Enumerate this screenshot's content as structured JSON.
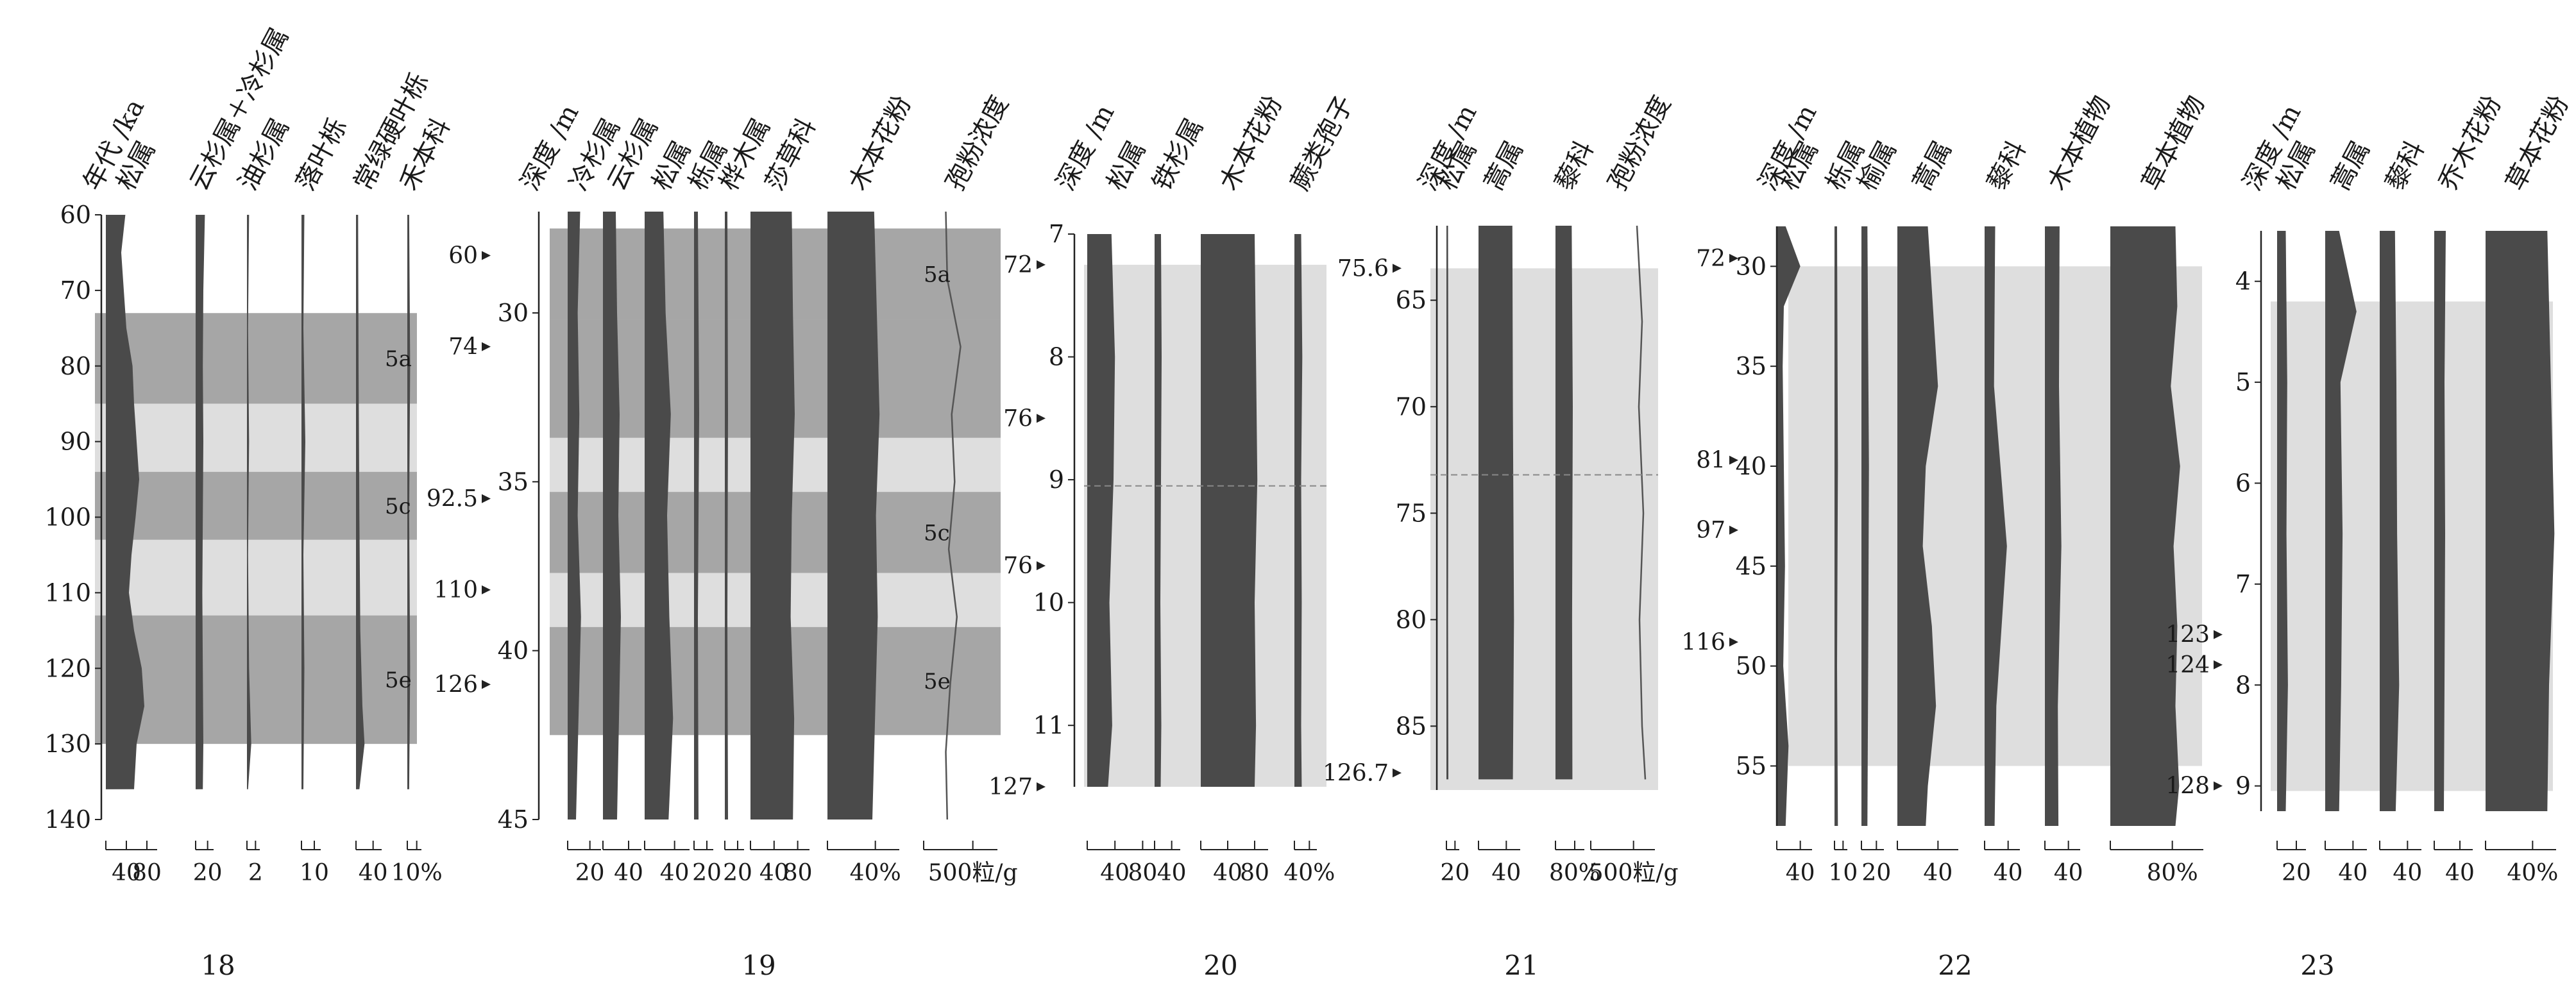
{
  "figure": {
    "colors": {
      "curve": "#4a4a4a",
      "zone_dark": "#a6a6a6",
      "zone_light": "#dedede",
      "axis": "#222222",
      "line": "#555555"
    }
  },
  "chart_data": [
    {
      "type": "area",
      "panel_label": "18",
      "depth_label": "年代 /ka",
      "depth_range": [
        60,
        140
      ],
      "depth_ticks": [
        "60",
        "70",
        "80",
        "90",
        "100",
        "110",
        "120",
        "130",
        "140"
      ],
      "zones": [
        {
          "from": 73,
          "to": 85,
          "shade": "dark",
          "label": "5a"
        },
        {
          "from": 85,
          "to": 94,
          "shade": "light",
          "label": ""
        },
        {
          "from": 94,
          "to": 103,
          "shade": "dark",
          "label": "5c"
        },
        {
          "from": 103,
          "to": 113,
          "shade": "light",
          "label": ""
        },
        {
          "from": 113,
          "to": 130,
          "shade": "dark",
          "label": "5e"
        }
      ],
      "markers": [],
      "dashed_line": null,
      "series": [
        {
          "name": "松属",
          "max": 100,
          "ticks": [
            "40",
            "80"
          ],
          "depths": [
            60,
            65,
            70,
            75,
            80,
            85,
            90,
            95,
            100,
            105,
            110,
            115,
            120,
            125,
            130,
            136
          ],
          "values": [
            38,
            30,
            35,
            40,
            52,
            55,
            60,
            65,
            58,
            50,
            45,
            55,
            70,
            75,
            60,
            55
          ]
        },
        {
          "name": "云杉属＋冷杉属",
          "max": 35,
          "ticks": [
            "20"
          ],
          "depths": [
            60,
            70,
            80,
            90,
            100,
            110,
            120,
            130,
            136
          ],
          "values": [
            18,
            15,
            14,
            15,
            14,
            13,
            14,
            15,
            14
          ]
        },
        {
          "name": "油杉属",
          "max": 6,
          "ticks": [
            "2"
          ],
          "depths": [
            60,
            75,
            90,
            105,
            120,
            130,
            136
          ],
          "values": [
            1,
            0.5,
            1,
            0.5,
            1,
            2,
            0.5
          ]
        },
        {
          "name": "落叶栎",
          "max": 20,
          "ticks": [
            "10"
          ],
          "depths": [
            60,
            75,
            90,
            105,
            120,
            136
          ],
          "values": [
            3,
            2,
            4,
            2,
            3,
            2
          ]
        },
        {
          "name": "常绿硬叶栎",
          "max": 60,
          "ticks": [
            "40"
          ],
          "depths": [
            60,
            80,
            100,
            115,
            125,
            130,
            136
          ],
          "values": [
            5,
            6,
            8,
            10,
            15,
            20,
            8
          ]
        },
        {
          "name": "禾本科",
          "max": 15,
          "ticks": [
            "10%"
          ],
          "depths": [
            60,
            80,
            100,
            120,
            136
          ],
          "values": [
            2,
            3,
            2,
            3,
            2
          ]
        }
      ]
    },
    {
      "type": "area",
      "panel_label": "19",
      "depth_label": "深度 /m",
      "depth_range": [
        27,
        45
      ],
      "depth_ticks": [
        "30",
        "35",
        "40",
        "45"
      ],
      "zones": [
        {
          "from": 27.5,
          "to": 30.2,
          "shade": "dark",
          "label": "5a"
        },
        {
          "from": 30.2,
          "to": 33.7,
          "shade": "dark",
          "label": ""
        },
        {
          "from": 33.7,
          "to": 35.3,
          "shade": "light",
          "label": ""
        },
        {
          "from": 35.3,
          "to": 37.7,
          "shade": "dark",
          "label": "5c"
        },
        {
          "from": 37.7,
          "to": 39.3,
          "shade": "light",
          "label": ""
        },
        {
          "from": 39.3,
          "to": 42.5,
          "shade": "dark",
          "label": "5e"
        }
      ],
      "markers": [
        {
          "label": "60",
          "depth": 28.3
        },
        {
          "label": "74",
          "depth": 31.0
        },
        {
          "label": "92.5",
          "depth": 35.5
        },
        {
          "label": "110",
          "depth": 38.2
        },
        {
          "label": "126",
          "depth": 41.0
        }
      ],
      "dashed_line": null,
      "series": [
        {
          "name": "冷杉属",
          "max": 40,
          "ticks": [
            "20"
          ],
          "depths": [
            27,
            30,
            33,
            36,
            39,
            42,
            45
          ],
          "values": [
            15,
            12,
            14,
            12,
            16,
            13,
            10
          ]
        },
        {
          "name": "云杉属",
          "max": 60,
          "ticks": [
            "40"
          ],
          "depths": [
            27,
            30,
            33,
            36,
            39,
            42,
            45
          ],
          "values": [
            20,
            22,
            26,
            24,
            28,
            25,
            22
          ]
        },
        {
          "name": "松属",
          "max": 60,
          "ticks": [
            "40"
          ],
          "depths": [
            27,
            30,
            33,
            36,
            39,
            42,
            45
          ],
          "values": [
            25,
            28,
            35,
            30,
            33,
            38,
            32
          ]
        },
        {
          "name": "栎属",
          "max": 30,
          "ticks": [
            "20"
          ],
          "depths": [
            27,
            33,
            39,
            45
          ],
          "values": [
            6,
            8,
            6,
            7
          ]
        },
        {
          "name": "桦木属",
          "max": 30,
          "ticks": [
            "20"
          ],
          "depths": [
            27,
            33,
            39,
            45
          ],
          "values": [
            4,
            5,
            4,
            5
          ]
        },
        {
          "name": "莎草科",
          "max": 100,
          "ticks": [
            "40",
            "80"
          ],
          "depths": [
            27,
            30,
            33,
            36,
            39,
            42,
            45
          ],
          "values": [
            70,
            72,
            75,
            70,
            68,
            74,
            72
          ]
        },
        {
          "name": "木本花粉",
          "max": 80,
          "ticks": [
            "40%"
          ],
          "depths": [
            27,
            30,
            33,
            36,
            39,
            42,
            45
          ],
          "values": [
            52,
            55,
            58,
            54,
            56,
            53,
            50
          ]
        },
        {
          "name": "孢粉浓度",
          "kind": "line",
          "max": 1000,
          "ticks": [
            "500粒/g"
          ],
          "depths": [
            27,
            29,
            31,
            33,
            35,
            37,
            39,
            41,
            43,
            45
          ],
          "values": [
            300,
            320,
            500,
            380,
            420,
            340,
            450,
            360,
            300,
            320
          ]
        }
      ]
    },
    {
      "type": "area",
      "panel_label": "20",
      "depth_label": "深度 /m",
      "depth_range": [
        7,
        11.5
      ],
      "depth_ticks": [
        "7",
        "8",
        "9",
        "10",
        "11"
      ],
      "zones": [
        {
          "from": 7.25,
          "to": 11.5,
          "shade": "light",
          "label": ""
        }
      ],
      "markers": [
        {
          "label": "72",
          "depth": 7.25
        },
        {
          "label": "76",
          "depth": 8.5
        },
        {
          "label": "76",
          "depth": 9.7
        },
        {
          "label": "127",
          "depth": 11.5
        }
      ],
      "dashed_line": 9.05,
      "series": [
        {
          "name": "松属",
          "max": 100,
          "ticks": [
            "40",
            "80"
          ],
          "depths": [
            7,
            8,
            9,
            10,
            11,
            11.5
          ],
          "values": [
            35,
            40,
            38,
            32,
            36,
            30
          ]
        },
        {
          "name": "铁杉属",
          "max": 80,
          "ticks": [
            "40"
          ],
          "depths": [
            7,
            8,
            9,
            10,
            11,
            11.5
          ],
          "values": [
            20,
            22,
            20,
            18,
            21,
            19
          ]
        },
        {
          "name": "木本花粉",
          "max": 100,
          "ticks": [
            "40",
            "80"
          ],
          "depths": [
            7,
            8,
            9,
            10,
            11,
            11.5
          ],
          "values": [
            80,
            82,
            84,
            80,
            82,
            80
          ]
        },
        {
          "name": "蕨类孢子",
          "max": 40,
          "ticks": [
            "40%"
          ],
          "depths": [
            7,
            8,
            9,
            10,
            11,
            11.5
          ],
          "values": [
            12,
            14,
            12,
            13,
            12,
            13
          ]
        }
      ]
    },
    {
      "type": "area",
      "panel_label": "21",
      "depth_label": "深度 /m",
      "depth_range": [
        61.5,
        88
      ],
      "depth_ticks": [
        "65",
        "70",
        "75",
        "80",
        "85"
      ],
      "zones": [
        {
          "from": 63.5,
          "to": 88,
          "shade": "light",
          "label": ""
        }
      ],
      "markers": [
        {
          "label": "75.6",
          "depth": 63.5
        },
        {
          "label": "126.7",
          "depth": 87.2
        }
      ],
      "dashed_line": 73.2,
      "series": [
        {
          "name": "松属",
          "max": 40,
          "ticks": [
            "20"
          ],
          "depths": [
            61.5,
            70,
            80,
            87.5
          ],
          "values": [
            5,
            6,
            5,
            6
          ]
        },
        {
          "name": "蒿属",
          "max": 80,
          "ticks": [
            "40"
          ],
          "depths": [
            61.5,
            70,
            80,
            87.5
          ],
          "values": [
            65,
            66,
            68,
            66
          ]
        },
        {
          "name": "藜科",
          "max": 80,
          "ticks": [
            "80%"
          ],
          "depths": [
            61.5,
            70,
            80,
            87.5
          ],
          "values": [
            45,
            48,
            46,
            47
          ]
        },
        {
          "name": "孢粉浓度",
          "kind": "line",
          "max": 1000,
          "ticks": [
            "500粒/g"
          ],
          "depths": [
            61.5,
            66,
            70,
            75,
            80,
            85,
            87.5
          ],
          "values": [
            720,
            800,
            750,
            820,
            760,
            800,
            850
          ]
        }
      ]
    },
    {
      "type": "area",
      "panel_label": "22",
      "depth_label": "深度 /m",
      "depth_range": [
        28,
        58
      ],
      "depth_ticks": [
        "30",
        "35",
        "40",
        "45",
        "50",
        "55"
      ],
      "zones": [
        {
          "from": 30,
          "to": 55,
          "shade": "light",
          "label": ""
        }
      ],
      "markers": [
        {
          "label": "72",
          "depth": 29.6
        },
        {
          "label": "81",
          "depth": 39.7
        },
        {
          "label": "97",
          "depth": 43.2
        },
        {
          "label": "116",
          "depth": 48.8
        }
      ],
      "dashed_line": null,
      "series": [
        {
          "name": "松属",
          "max": 60,
          "ticks": [
            "40"
          ],
          "depths": [
            28,
            30,
            32,
            35,
            40,
            45,
            50,
            54,
            58
          ],
          "values": [
            15,
            40,
            12,
            10,
            12,
            14,
            11,
            20,
            15
          ]
        },
        {
          "name": "栎属",
          "max": 15,
          "ticks": [
            "10"
          ],
          "depths": [
            28,
            40,
            50,
            58
          ],
          "values": [
            3,
            4,
            3,
            4
          ]
        },
        {
          "name": "榆属",
          "max": 30,
          "ticks": [
            "20"
          ],
          "depths": [
            28,
            40,
            50,
            58
          ],
          "values": [
            8,
            10,
            9,
            8
          ]
        },
        {
          "name": "蒿属",
          "max": 60,
          "ticks": [
            "40"
          ],
          "depths": [
            28,
            32,
            36,
            40,
            44,
            48,
            52,
            56,
            58
          ],
          "values": [
            30,
            35,
            40,
            28,
            25,
            34,
            38,
            30,
            28
          ]
        },
        {
          "name": "藜科",
          "max": 60,
          "ticks": [
            "40"
          ],
          "depths": [
            28,
            36,
            44,
            52,
            58
          ],
          "values": [
            18,
            16,
            38,
            20,
            17
          ]
        },
        {
          "name": "木本植物",
          "max": 60,
          "ticks": [
            "40"
          ],
          "depths": [
            28,
            36,
            44,
            52,
            58
          ],
          "values": [
            25,
            24,
            28,
            22,
            23
          ]
        },
        {
          "name": "草本植物",
          "max": 100,
          "ticks": [
            "80%"
          ],
          "depths": [
            28,
            32,
            36,
            40,
            44,
            48,
            52,
            56,
            58
          ],
          "values": [
            70,
            72,
            65,
            75,
            68,
            72,
            70,
            74,
            70
          ]
        }
      ]
    },
    {
      "type": "area",
      "panel_label": "23",
      "depth_label": "深度 /m",
      "depth_range": [
        3.5,
        9.25
      ],
      "depth_ticks": [
        "4",
        "5",
        "6",
        "7",
        "8",
        "9"
      ],
      "zones": [
        {
          "from": 4.2,
          "to": 9.05,
          "shade": "light",
          "label": ""
        }
      ],
      "markers": [
        {
          "label": "123",
          "depth": 7.5
        },
        {
          "label": "124",
          "depth": 7.8
        },
        {
          "label": "128",
          "depth": 9.0
        }
      ],
      "dashed_line": null,
      "series": [
        {
          "name": "松属",
          "max": 40,
          "ticks": [
            "20"
          ],
          "depths": [
            3.5,
            5,
            6.5,
            8,
            9.25
          ],
          "values": [
            12,
            14,
            13,
            15,
            12
          ]
        },
        {
          "name": "蒿属",
          "max": 60,
          "ticks": [
            "40"
          ],
          "depths": [
            3.5,
            4.3,
            5,
            6.5,
            8,
            9.25
          ],
          "values": [
            20,
            45,
            22,
            25,
            23,
            20
          ]
        },
        {
          "name": "藜科",
          "max": 60,
          "ticks": [
            "40"
          ],
          "depths": [
            3.5,
            5,
            6.5,
            8,
            9.25
          ],
          "values": [
            22,
            24,
            25,
            28,
            23
          ]
        },
        {
          "name": "乔木花粉",
          "max": 60,
          "ticks": [
            "40"
          ],
          "depths": [
            3.5,
            5,
            6.5,
            8,
            9.25
          ],
          "values": [
            18,
            16,
            17,
            16,
            15
          ]
        },
        {
          "name": "草本花粉",
          "max": 80,
          "ticks": [
            "40%"
          ],
          "depths": [
            3.5,
            5,
            6.5,
            8,
            9.25
          ],
          "values": [
            70,
            74,
            78,
            72,
            70
          ]
        }
      ]
    }
  ]
}
